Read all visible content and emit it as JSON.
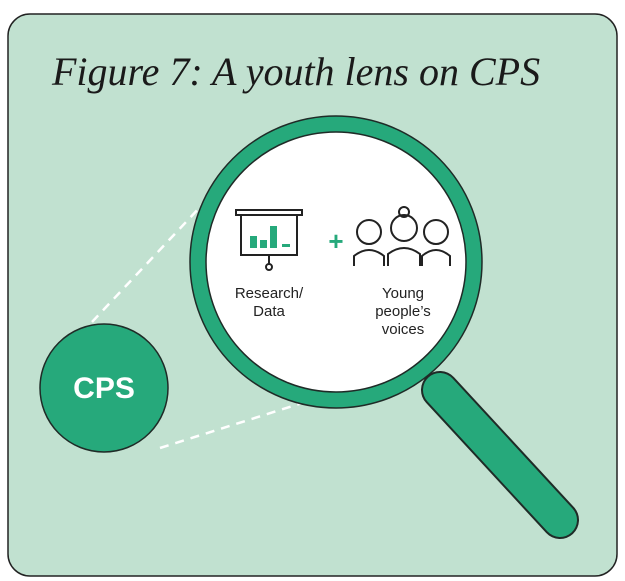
{
  "title": "Figure 7: A youth lens on CPS",
  "nodes": [
    {
      "label": "CPS"
    },
    {
      "label": "Research/\nData"
    },
    {
      "label": "+"
    },
    {
      "label": "Young\npeople’s\nvoices"
    }
  ]
}
